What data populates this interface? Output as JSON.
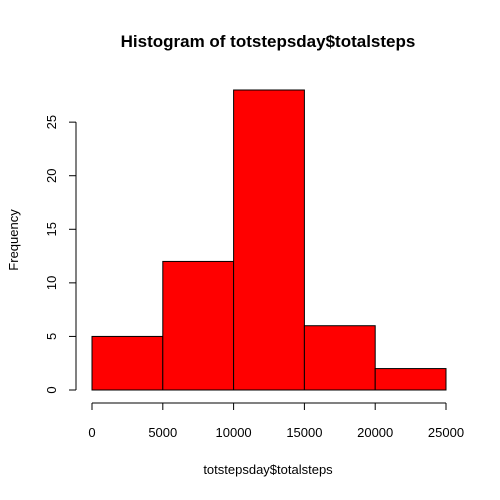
{
  "chart_data": {
    "type": "bar",
    "title": "Histogram of totstepsday$totalsteps",
    "xlabel": "totstepsday$totalsteps",
    "ylabel": "Frequency",
    "bin_edges": [
      0,
      5000,
      10000,
      15000,
      20000,
      25000
    ],
    "values": [
      5,
      12,
      28,
      6,
      2
    ],
    "xlim": [
      0,
      25000
    ],
    "ylim": [
      0,
      28
    ],
    "x_ticks": [
      0,
      5000,
      10000,
      15000,
      20000,
      25000
    ],
    "y_ticks": [
      0,
      5,
      10,
      15,
      20,
      25
    ],
    "bar_color": "#ff0000",
    "grid": false
  }
}
